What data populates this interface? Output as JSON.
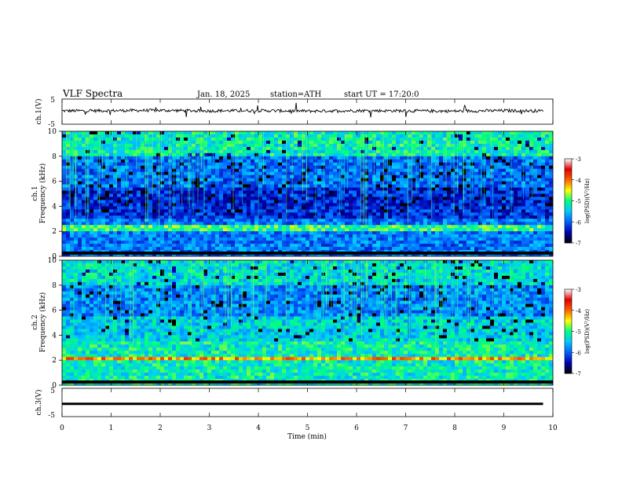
{
  "header": {
    "title": "VLF Spectra",
    "date": "Jan. 18, 2025",
    "station": "station=ATH",
    "start_ut": "start UT =  17:20:0"
  },
  "chart_data": [
    {
      "type": "line",
      "panel": "ch1-waveform",
      "ylabel": "ch.1(V)",
      "yticks": [
        "5",
        "-5"
      ],
      "ylim": [
        -5,
        5
      ],
      "x": [
        0,
        1,
        2,
        3,
        4,
        5,
        6,
        7,
        8,
        9,
        9.8
      ],
      "y": [
        0.3,
        0.4,
        0.5,
        0.3,
        0.4,
        0.2,
        0.4,
        0.3,
        0.2,
        0.4,
        0.3
      ]
    },
    {
      "type": "heatmap",
      "panel": "ch1-spectrogram",
      "ylabel_top": "ch.1",
      "ylabel": "Frequency (kHz)",
      "yticks": [
        "0",
        "2",
        "4",
        "6",
        "8",
        "10"
      ],
      "ylim": [
        0,
        10
      ],
      "colorbar": {
        "label": "log(PSD)(V²/Hz)",
        "ticks": [
          "-3",
          "-4",
          "-5",
          "-6",
          "-7"
        ],
        "range": [
          -7,
          -3
        ]
      }
    },
    {
      "type": "heatmap",
      "panel": "ch2-spectrogram",
      "ylabel_top": "ch.2",
      "ylabel": "Frequency (kHz)",
      "yticks": [
        "0",
        "2",
        "4",
        "6",
        "8",
        "10"
      ],
      "ylim": [
        0,
        10
      ],
      "colorbar": {
        "label": "log(PSD)(V²/Hz)",
        "ticks": [
          "-3",
          "-4",
          "-5",
          "-6",
          "-7"
        ],
        "range": [
          -7,
          -3
        ]
      }
    },
    {
      "type": "line",
      "panel": "ch3-waveform",
      "ylabel": "ch.3(V)",
      "yticks": [
        "5",
        "-5"
      ],
      "ylim": [
        -5,
        5
      ],
      "x": [
        0,
        9.8
      ],
      "y": [
        -0.5,
        -0.5
      ]
    }
  ],
  "xaxis": {
    "label": "Time  (min)",
    "ticks": [
      "0",
      "1",
      "2",
      "3",
      "4",
      "5",
      "6",
      "7",
      "8",
      "9",
      "10"
    ],
    "xlim": [
      0,
      10
    ]
  },
  "colors": {
    "background": "#ffffff",
    "trace": "#000000",
    "colormap": [
      "#000000",
      "#0000b0",
      "#0060ff",
      "#00c8ff",
      "#00ff80",
      "#ffff00",
      "#ff6000",
      "#e00000",
      "#ffffff"
    ]
  }
}
